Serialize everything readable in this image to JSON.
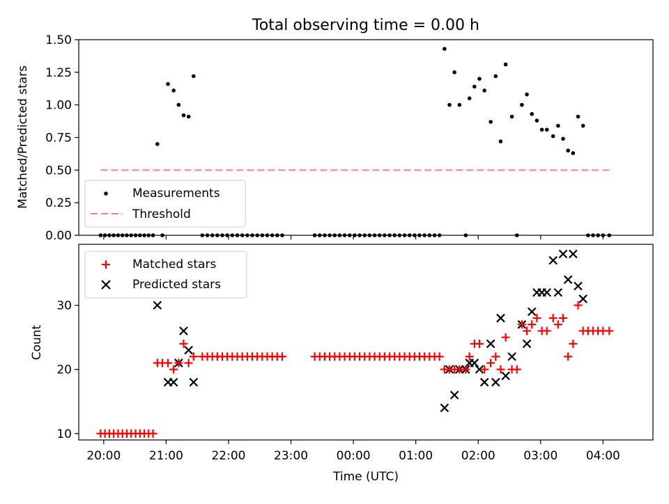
{
  "title": "Total observing time = 0.00 h",
  "colors": {
    "matched": "#ff0000",
    "predicted": "#000000",
    "threshold": "#ff7f7f",
    "measure": "#000000"
  },
  "chart_data": [
    {
      "type": "scatter",
      "panel": "top",
      "title": "Total observing time = 0.00 h",
      "ylabel": "Matched/Predicted stars",
      "xlabel": "",
      "ylim": [
        0,
        1.5
      ],
      "xlim_hours": [
        19.6,
        28.8
      ],
      "yticks": [
        "0.00",
        "0.25",
        "0.50",
        "0.75",
        "1.00",
        "1.25",
        "1.50"
      ],
      "legend": {
        "position": "lower-left",
        "entries": [
          "Measurements",
          "Threshold"
        ]
      },
      "threshold": 0.5,
      "threshold_x": [
        19.95,
        28.1
      ],
      "series": [
        {
          "name": "Measurements",
          "x": [
            19.95,
            20.02,
            20.09,
            20.16,
            20.23,
            20.3,
            20.37,
            20.44,
            20.51,
            20.58,
            20.65,
            20.72,
            20.79,
            20.86,
            20.94,
            21.03,
            21.12,
            21.2,
            21.28,
            21.36,
            21.44,
            21.58,
            21.66,
            21.74,
            21.82,
            21.9,
            21.98,
            22.06,
            22.14,
            22.22,
            22.3,
            22.38,
            22.46,
            22.54,
            22.62,
            22.7,
            22.78,
            22.86,
            23.38,
            23.46,
            23.54,
            23.62,
            23.7,
            23.78,
            23.86,
            23.94,
            24.02,
            24.1,
            24.18,
            24.26,
            24.34,
            24.42,
            24.5,
            24.58,
            24.66,
            24.74,
            24.82,
            24.9,
            24.98,
            25.06,
            25.14,
            25.22,
            25.3,
            25.38,
            25.46,
            25.54,
            25.62,
            25.7,
            25.8,
            25.86,
            25.94,
            26.02,
            26.1,
            26.2,
            26.28,
            26.36,
            26.44,
            26.54,
            26.62,
            26.7,
            26.78,
            26.86,
            26.94,
            27.02,
            27.1,
            27.2,
            27.28,
            27.36,
            27.44,
            27.52,
            27.6,
            27.68,
            27.76,
            27.84,
            27.92,
            28.0,
            28.1
          ],
          "values": [
            0,
            0,
            0,
            0,
            0,
            0,
            0,
            0,
            0,
            0,
            0,
            0,
            0,
            0.7,
            0,
            1.16,
            1.11,
            1.0,
            0.92,
            0.91,
            1.22,
            0,
            0,
            0,
            0,
            0,
            0,
            0,
            0,
            0,
            0,
            0,
            0,
            0,
            0,
            0,
            0,
            0,
            0,
            0,
            0,
            0,
            0,
            0,
            0,
            0,
            0,
            0,
            0,
            0,
            0,
            0,
            0,
            0,
            0,
            0,
            0,
            0,
            0,
            0,
            0,
            0,
            0,
            0,
            1.43,
            1.0,
            1.25,
            1.0,
            0,
            1.05,
            1.14,
            1.2,
            1.11,
            0.87,
            1.22,
            0.72,
            1.31,
            0.91,
            0,
            1.0,
            1.08,
            0.93,
            0.88,
            0.81,
            0.81,
            0.76,
            0.84,
            0.74,
            0.65,
            0.63,
            0.91,
            0.84,
            0,
            0,
            0,
            0,
            0
          ]
        }
      ]
    },
    {
      "type": "scatter",
      "panel": "bottom",
      "title": "",
      "ylabel": "Count",
      "xlabel": "Time (UTC)",
      "ylim": [
        9,
        39.5
      ],
      "xlim_hours": [
        19.6,
        28.8
      ],
      "yticks": [
        10,
        20,
        30
      ],
      "xticks": [
        "20:00",
        "21:00",
        "22:00",
        "23:00",
        "00:00",
        "01:00",
        "02:00",
        "03:00",
        "04:00"
      ],
      "xtick_hours": [
        20,
        21,
        22,
        23,
        24,
        25,
        26,
        27,
        28
      ],
      "legend": {
        "position": "upper-left",
        "entries": [
          "Matched stars",
          "Predicted stars"
        ]
      },
      "series": [
        {
          "name": "Matched stars",
          "marker": "plus",
          "x": [
            19.95,
            20.02,
            20.09,
            20.16,
            20.23,
            20.3,
            20.37,
            20.44,
            20.51,
            20.58,
            20.65,
            20.72,
            20.79,
            20.86,
            20.94,
            21.03,
            21.12,
            21.2,
            21.28,
            21.36,
            21.44,
            21.58,
            21.66,
            21.74,
            21.82,
            21.9,
            21.98,
            22.06,
            22.14,
            22.22,
            22.3,
            22.38,
            22.46,
            22.54,
            22.62,
            22.7,
            22.78,
            22.86,
            23.38,
            23.46,
            23.54,
            23.62,
            23.7,
            23.78,
            23.86,
            23.94,
            24.02,
            24.1,
            24.18,
            24.26,
            24.34,
            24.42,
            24.5,
            24.58,
            24.66,
            24.74,
            24.82,
            24.9,
            24.98,
            25.06,
            25.14,
            25.22,
            25.3,
            25.38,
            25.46,
            25.54,
            25.62,
            25.7,
            25.8,
            25.86,
            25.94,
            26.02,
            26.1,
            26.2,
            26.28,
            26.36,
            26.44,
            26.54,
            26.62,
            26.7,
            26.78,
            26.86,
            26.94,
            27.02,
            27.1,
            27.2,
            27.28,
            27.36,
            27.44,
            27.52,
            27.6,
            27.68,
            27.76,
            27.84,
            27.92,
            28.0,
            28.1
          ],
          "values": [
            10,
            10,
            10,
            10,
            10,
            10,
            10,
            10,
            10,
            10,
            10,
            10,
            10,
            21,
            21,
            21,
            20,
            21,
            24,
            21,
            22,
            22,
            22,
            22,
            22,
            22,
            22,
            22,
            22,
            22,
            22,
            22,
            22,
            22,
            22,
            22,
            22,
            22,
            22,
            22,
            22,
            22,
            22,
            22,
            22,
            22,
            22,
            22,
            22,
            22,
            22,
            22,
            22,
            22,
            22,
            22,
            22,
            22,
            22,
            22,
            22,
            22,
            22,
            22,
            20,
            20,
            20,
            20,
            20,
            22,
            24,
            24,
            20,
            21,
            22,
            20,
            25,
            20,
            20,
            27,
            26,
            27,
            28,
            26,
            26,
            28,
            27,
            28,
            22,
            24,
            30,
            26,
            26,
            26,
            26,
            26,
            26
          ]
        },
        {
          "name": "Predicted stars",
          "marker": "x",
          "x": [
            20.86,
            21.03,
            21.12,
            21.2,
            21.28,
            21.36,
            21.44,
            25.46,
            25.54,
            25.62,
            25.7,
            25.8,
            25.86,
            25.94,
            26.02,
            26.1,
            26.2,
            26.28,
            26.36,
            26.44,
            26.54,
            26.7,
            26.78,
            26.86,
            26.94,
            27.02,
            27.1,
            27.2,
            27.28,
            27.36,
            27.44,
            27.52,
            27.6,
            27.68
          ],
          "values": [
            30,
            18,
            18,
            21,
            26,
            23,
            18,
            14,
            20,
            16,
            20,
            20,
            21,
            21,
            20,
            18,
            24,
            18,
            28,
            19,
            22,
            27,
            24,
            29,
            32,
            32,
            32,
            37,
            32,
            38,
            34,
            38,
            33,
            31
          ]
        }
      ]
    }
  ]
}
